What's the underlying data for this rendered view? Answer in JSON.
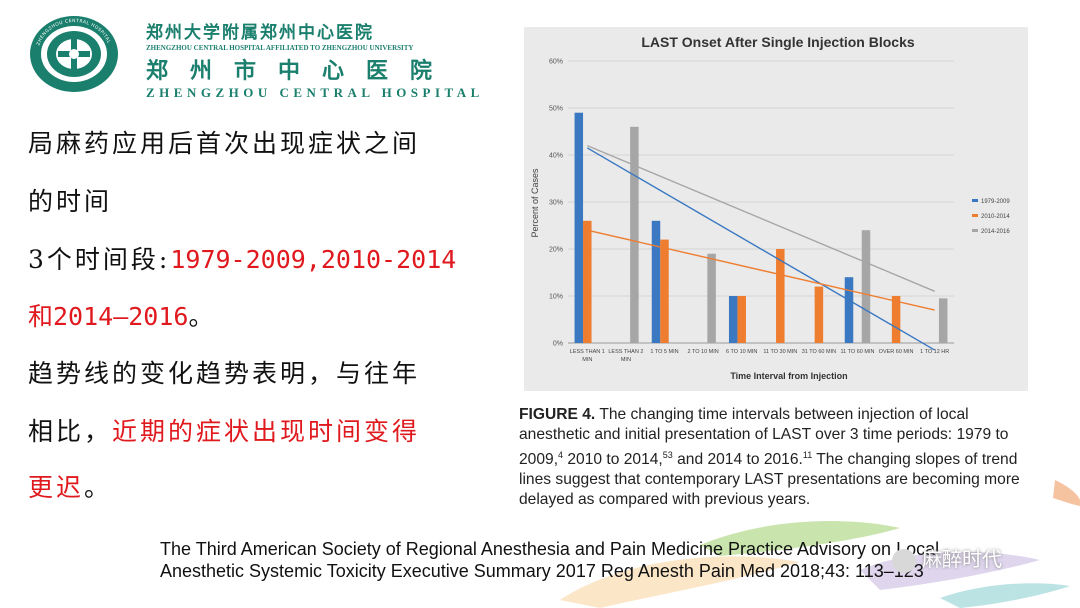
{
  "header": {
    "hospital_cn_line1": "郑州大学附属郑州中心医院",
    "hospital_en_line1": "ZHENGZHOU CENTRAL HOSPITAL AFFILIATED TO ZHENGZHOU UNIVERSITY",
    "hospital_cn_line2": "郑州市中心医院",
    "hospital_en_line2": "ZHENGZHOU CENTRAL HOSPITAL",
    "logo_ring_text": "ZHENGZHOU CENTRAL HOSPITAL"
  },
  "body": {
    "line1": "局麻药应用后首次出现症状之间",
    "line2": "的时间",
    "line3_prefix": "3个时间段:",
    "line3_red": "1979-2009,2010-2014",
    "line4_red": "和2014–2016",
    "line4_end": "。",
    "line5": "趋势线的变化趋势表明，与往年",
    "line6_prefix": "相比，",
    "line6_red": "近期的症状出现时间变得",
    "line7_red": "更迟",
    "line7_end": "。"
  },
  "caption": {
    "label": "FIGURE 4.",
    "text": "The changing time intervals between injection of local anesthetic and initial presentation of LAST over 3 time periods: 1979 to 2009,",
    "sup1": "4",
    "text2": " 2010 to 2014,",
    "sup2": "53",
    "text3": " and 2014 to 2016.",
    "sup3": "11",
    "text4": " The changing slopes of trend lines suggest that contemporary LAST presentations are becoming more delayed as compared with previous years."
  },
  "reference": {
    "line1": "The Third American Society of Regional Anesthesia and Pain Medicine Practice Advisory on Local",
    "line2": "Anesthetic Systemic Toxicity Executive Summary 2017    Reg Anesth Pain Med 2018;43: 113–123"
  },
  "watermark": "麻醉时代",
  "colors": {
    "series1": "#3a78c2",
    "series2": "#ee7d30",
    "series3": "#a6a6a6",
    "red_text": "#e0191e",
    "brand_green": "#1b7f6e"
  },
  "chart_data": {
    "type": "bar",
    "title": "LAST Onset After Single Injection Blocks",
    "xlabel": "Time Interval from Injection",
    "ylabel": "Percent of Cases",
    "ylim": [
      0,
      60
    ],
    "yticks": [
      "0%",
      "10%",
      "20%",
      "30%",
      "40%",
      "50%",
      "60%"
    ],
    "categories": [
      "LESS THAN 1 MIN",
      "LESS THAN 2 MIN",
      "1 TO 5 MIN",
      "2 TO 10 MIN",
      "6 TO 10 MIN",
      "11 TO 30 MIN",
      "31 TO 60 MIN",
      "11 TO 60 MIN",
      "OVER 60 MIN",
      "1 TO 12 HR"
    ],
    "series": [
      {
        "name": "1979-2009",
        "color": "#3a78c2",
        "values": [
          49,
          null,
          26,
          null,
          10,
          null,
          null,
          14,
          null,
          null
        ]
      },
      {
        "name": "2010-2014",
        "color": "#ee7d30",
        "values": [
          26,
          null,
          22,
          null,
          10,
          20,
          12,
          null,
          10,
          null
        ]
      },
      {
        "name": "2014-2016",
        "color": "#a6a6a6",
        "values": [
          null,
          46,
          null,
          19,
          null,
          null,
          null,
          24,
          null,
          9.5
        ]
      }
    ],
    "trendlines": [
      {
        "series": "1979-2009",
        "start": 41.5,
        "end": -1.5
      },
      {
        "series": "2010-2014",
        "start": 24,
        "end": 7
      },
      {
        "series": "2014-2016",
        "start": 42,
        "end": 11
      }
    ],
    "legend_position": "right",
    "grid": true
  }
}
